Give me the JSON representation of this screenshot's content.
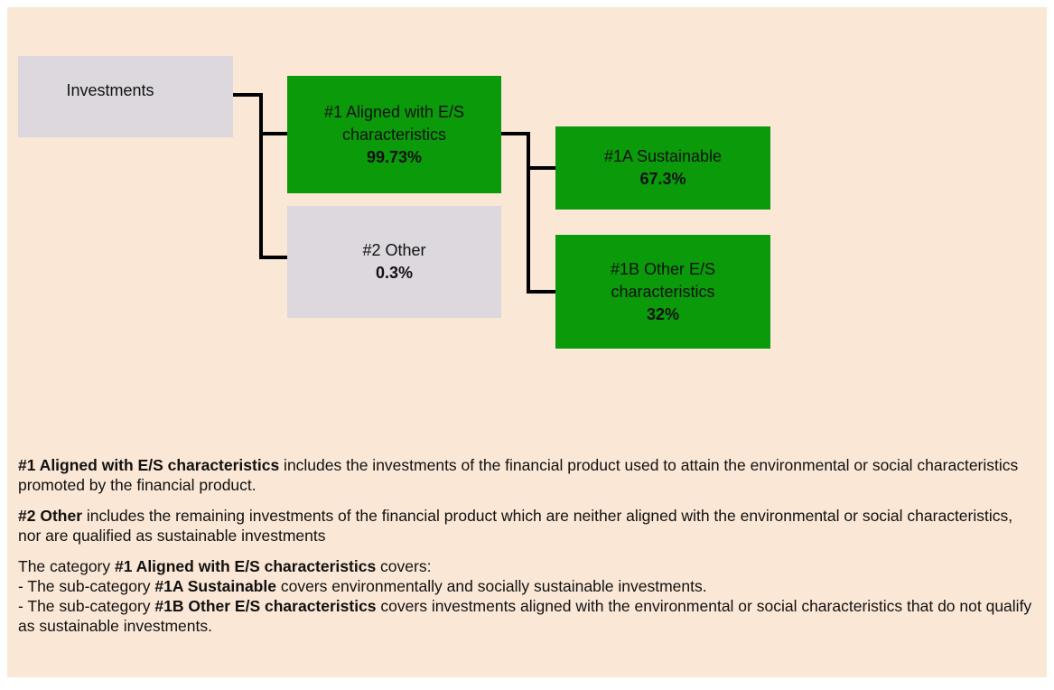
{
  "nodes": [
    {
      "label": "Investments"
    },
    {
      "label": "#1 Aligned with E/S characteristics",
      "value": "99.73%"
    },
    {
      "label": "#2 Other",
      "value": "0.3%"
    },
    {
      "label": "#1A Sustainable",
      "value": "67.3%"
    },
    {
      "label": "#1B Other E/S characteristics",
      "value": "32%"
    }
  ],
  "paragraphs": [
    {
      "bold": "#1 Aligned with E/S characteristics",
      "text": " includes the investments of the financial product used to attain the environmental or social characteristics promoted by the financial product."
    },
    {
      "bold": "#2 Other",
      "text": " includes the remaining investments of the financial product which are neither aligned with the environmental or social characteristics, nor are qualified as sustainable investments"
    }
  ],
  "category_note": {
    "intro": "The category ",
    "intro_bold": "#1 Aligned with E/S characteristics",
    "intro_end": " covers:",
    "items": [
      {
        "prefix": "- The sub-category ",
        "bold": "#1A Sustainable",
        "text": " covers environmentally and socially sustainable investments."
      },
      {
        "prefix": "- The sub-category ",
        "bold": "#1B Other E/S characteristics",
        "text": " covers investments aligned with the environmental or social characteristics that do not qualify as sustainable investments."
      }
    ]
  }
}
